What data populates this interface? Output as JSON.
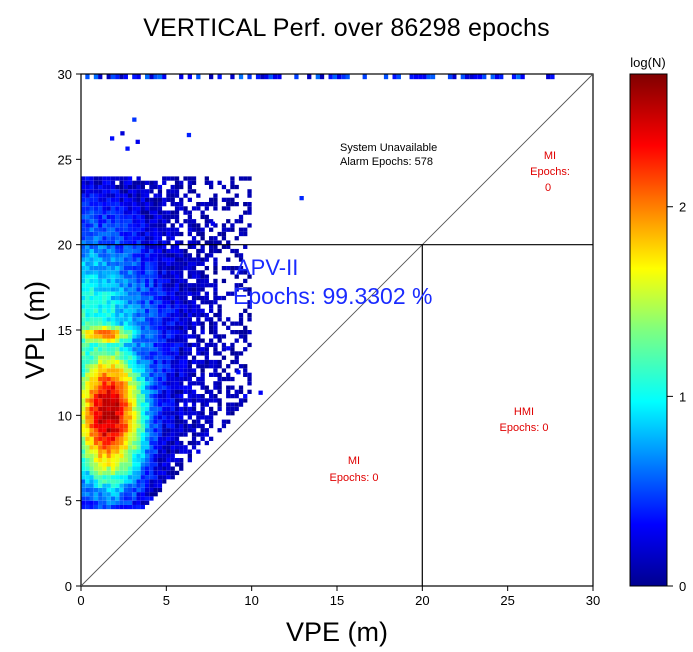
{
  "chart_data": {
    "type": "heatmap",
    "title": "VERTICAL Perf. over 86298 epochs",
    "xlabel": "VPE (m)",
    "ylabel": "VPL (m)",
    "xlim": [
      0,
      30
    ],
    "ylim": [
      0,
      30
    ],
    "xticks": [
      "0",
      "5",
      "10",
      "15",
      "20",
      "25",
      "30"
    ],
    "yticks": [
      "0",
      "5",
      "10",
      "15",
      "20",
      "25",
      "30"
    ],
    "colorbar": {
      "label": "log(N)",
      "range": [
        0,
        2.7
      ],
      "ticks": [
        "0",
        "1",
        "2"
      ],
      "colormap": "jet"
    },
    "alarm_limit": 20,
    "regions": {
      "apv": {
        "name": "APV-II",
        "epochs_text": "Epochs: 99.3302 %"
      },
      "unavailable": {
        "line1": "System Unavailable",
        "line2": "Alarm Epochs: 578"
      },
      "mi_upper": {
        "line1": "MI",
        "line2": "Epochs:",
        "line3": "0"
      },
      "hmi": {
        "line1": "HMI",
        "line2": "Epochs: 0"
      },
      "mi_lower": {
        "line1": "MI",
        "line2": "Epochs: 0"
      }
    },
    "density_core": {
      "vpe_range": [
        0,
        8
      ],
      "vpl_range": [
        4.5,
        23.5
      ],
      "peak_vpe": 1.5,
      "peak_vpl": 10
    },
    "top_saturation_row": 30
  }
}
